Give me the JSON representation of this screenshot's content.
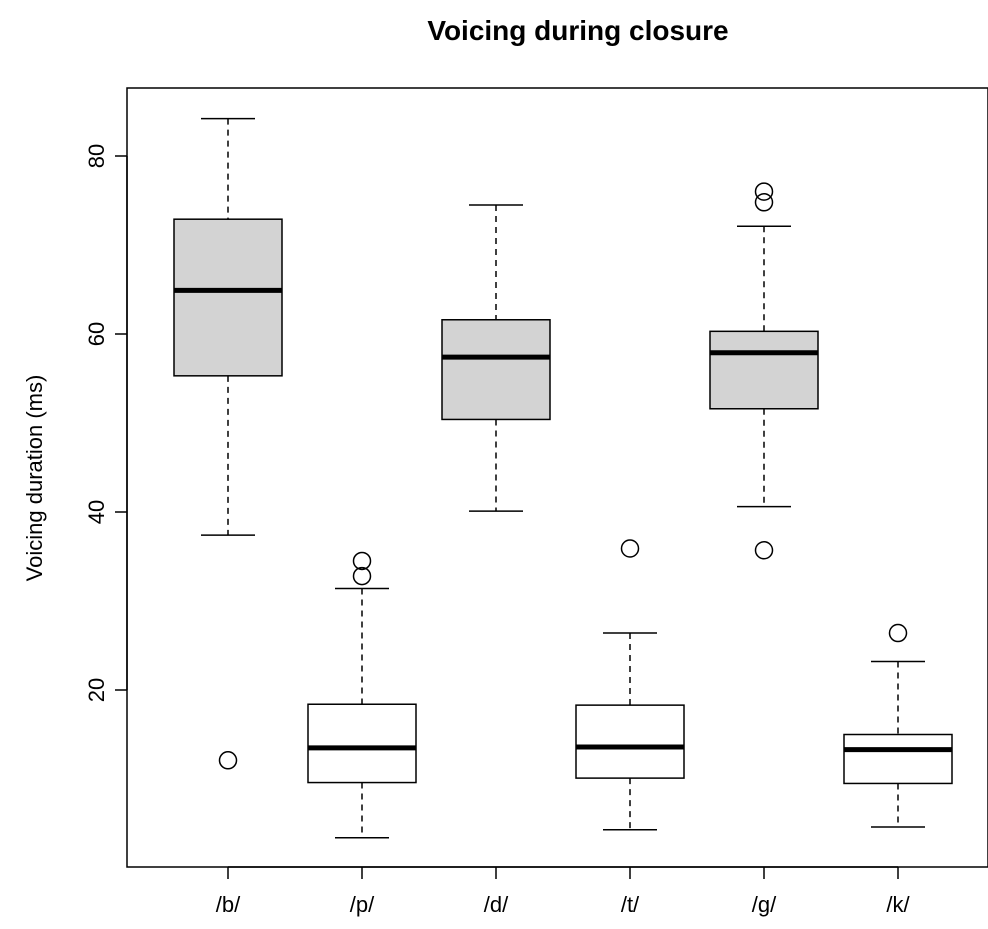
{
  "chart_data": {
    "type": "boxplot",
    "title": "Voicing during closure",
    "xlabel": "",
    "ylabel": "Voicing duration (ms)",
    "ylim": [
      2,
      88
    ],
    "y_ticks": [
      20,
      40,
      60,
      80
    ],
    "y_tick_labels": [
      "20",
      "40",
      "60",
      "80"
    ],
    "grid": false,
    "legend": null,
    "colors": {
      "voiced_fill": "#d3d3d3",
      "voiceless_fill": "#ffffff",
      "stroke": "#000000"
    },
    "categories": [
      "/b/",
      "/p/",
      "/d/",
      "/t/",
      "/g/",
      "/k/"
    ],
    "boxes": [
      {
        "label": "/b/",
        "whisker_low": 37.4,
        "q1": 55.3,
        "median": 64.9,
        "q3": 72.9,
        "whisker_high": 84.2,
        "outliers": [
          12.1
        ],
        "fill": "#d3d3d3"
      },
      {
        "label": "/p/",
        "whisker_low": 3.4,
        "q1": 9.6,
        "median": 13.5,
        "q3": 18.4,
        "whisker_high": 31.4,
        "outliers": [
          32.8,
          34.5
        ],
        "fill": "#ffffff"
      },
      {
        "label": "/d/",
        "whisker_low": 40.1,
        "q1": 50.4,
        "median": 57.4,
        "q3": 61.6,
        "whisker_high": 74.5,
        "outliers": [],
        "fill": "#d3d3d3"
      },
      {
        "label": "/t/",
        "whisker_low": 4.3,
        "q1": 10.1,
        "median": 13.6,
        "q3": 18.3,
        "whisker_high": 26.4,
        "outliers": [
          35.9
        ],
        "fill": "#ffffff"
      },
      {
        "label": "/g/",
        "whisker_low": 40.6,
        "q1": 51.6,
        "median": 57.9,
        "q3": 60.3,
        "whisker_high": 72.1,
        "outliers": [
          35.7,
          74.8,
          76.0
        ],
        "fill": "#d3d3d3"
      },
      {
        "label": "/k/",
        "whisker_low": 4.6,
        "q1": 9.5,
        "median": 13.3,
        "q3": 15.0,
        "whisker_high": 23.2,
        "outliers": [
          26.4
        ],
        "fill": "#ffffff"
      }
    ]
  }
}
